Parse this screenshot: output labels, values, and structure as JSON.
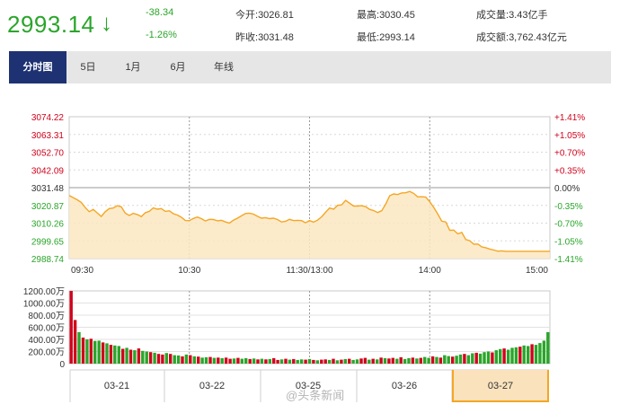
{
  "header": {
    "price": "2993.14",
    "arrow": "↓",
    "change": "-38.34",
    "change_pct": "-1.26%",
    "open_label": "今开:",
    "open_value": "3026.81",
    "prev_close_label": "昨收:",
    "prev_close_value": "3031.48",
    "high_label": "最高:",
    "high_value": "3030.45",
    "low_label": "最低:",
    "low_value": "2993.14",
    "volume_label": "成交量:",
    "volume_value": "3.43亿手",
    "turnover_label": "成交额:",
    "turnover_value": "3,762.43亿元"
  },
  "tabs": [
    "分时图",
    "5日",
    "1月",
    "6月",
    "年线"
  ],
  "active_tab": "分时图",
  "date_tabs": [
    "03-21",
    "03-22",
    "03-25",
    "03-26",
    "03-27"
  ],
  "active_date": "03-27",
  "watermark": "@头条新闻",
  "colors": {
    "up": "#d0021b",
    "down": "#2aa52a",
    "line": "#f5a623",
    "area": "#fbe7c2",
    "tab_active": "#1e3273",
    "grid": "#cccccc"
  },
  "chart_data": [
    {
      "type": "area",
      "x_labels": [
        "09:30",
        "10:30",
        "11:30/13:00",
        "14:00",
        "15:00"
      ],
      "y_tick_labels_left": [
        "3074.22",
        "3063.31",
        "3052.70",
        "3042.09",
        "3031.48",
        "3020.87",
        "3010.26",
        "2999.65",
        "2988.74"
      ],
      "y_tick_labels_right": [
        "+1.41%",
        "+1.05%",
        "+0.70%",
        "+0.35%",
        "0.00%",
        "-0.35%",
        "-0.70%",
        "-1.05%",
        "-1.41%"
      ],
      "ylim": [
        2988.74,
        3074.22
      ],
      "baseline": 3031.48,
      "series": [
        {
          "x": [
            0,
            2,
            4,
            6,
            8,
            10,
            12,
            14,
            16,
            18,
            20,
            22,
            24,
            26,
            28,
            30,
            32,
            34,
            36,
            38,
            40,
            42,
            44,
            46,
            48,
            50,
            52,
            54,
            56,
            58,
            60,
            62,
            64,
            66,
            68,
            70,
            72,
            74,
            76,
            78,
            80,
            82,
            84,
            86,
            88,
            90,
            92,
            94,
            96,
            98,
            100,
            102,
            104,
            106,
            108,
            110,
            112,
            114,
            116,
            118,
            120,
            122,
            124,
            126,
            128,
            130,
            132,
            134,
            136,
            138,
            140,
            142,
            144,
            146,
            148,
            150,
            152,
            154,
            156,
            158,
            160,
            162,
            164,
            166,
            168,
            170,
            172,
            174,
            176,
            178,
            180,
            182,
            184,
            186,
            188,
            190,
            192,
            194,
            196,
            198,
            200,
            202,
            204,
            206,
            208,
            210,
            212,
            214,
            216,
            218,
            220,
            222,
            224,
            226,
            228,
            230,
            232,
            234,
            236,
            238,
            240
          ],
          "values": [
            3026.8,
            3025.5,
            3024.2,
            3022.6,
            3019.5,
            3017.0,
            3018.4,
            3016.3,
            3014.1,
            3017.0,
            3018.9,
            3019.2,
            3020.6,
            3019.9,
            3016.1,
            3014.7,
            3016.0,
            3015.3,
            3014.0,
            3016.4,
            3017.2,
            3019.3,
            3018.5,
            3018.9,
            3017.2,
            3017.5,
            3015.8,
            3015.0,
            3013.6,
            3011.7,
            3011.6,
            3012.9,
            3013.8,
            3012.8,
            3011.4,
            3012.4,
            3012.3,
            3011.5,
            3011.8,
            3010.8,
            3010.1,
            3011.9,
            3013.1,
            3014.5,
            3015.9,
            3016.1,
            3015.5,
            3014.2,
            3013.1,
            3013.4,
            3012.8,
            3013.1,
            3012.3,
            3010.8,
            3011.2,
            3012.4,
            3011.6,
            3011.8,
            3011.6,
            3010.3,
            3011.6,
            3010.7,
            3011.9,
            3013.9,
            3016.6,
            3019.2,
            3018.5,
            3020.8,
            3021.1,
            3023.8,
            3022.1,
            3020.4,
            3020.4,
            3020.6,
            3020.0,
            3018.4,
            3017.7,
            3016.5,
            3017.6,
            3021.5,
            3026.6,
            3027.7,
            3027.3,
            3028.3,
            3028.4,
            3029.2,
            3028.0,
            3025.9,
            3026.0,
            3025.8,
            3023.0,
            3019.6,
            3015.6,
            3011.3,
            3010.8,
            3005.8,
            3005.9,
            3003.6,
            3004.5,
            3000.2,
            2999.5,
            2997.4,
            2997.5,
            2995.8,
            2995.3,
            2994.5,
            2993.9,
            2993.2,
            2993.4,
            2993.1,
            2993.1,
            2993.1,
            2993.1,
            2993.1,
            2993.1,
            2993.1,
            2993.1,
            2993.1,
            2993.1,
            2993.1,
            2993.1
          ]
        }
      ]
    },
    {
      "type": "bar",
      "y_tick_labels": [
        "1200.00万",
        "1000.00万",
        "800.00万",
        "600.00万",
        "400.00万",
        "200.00万",
        "0"
      ],
      "ylim": [
        0,
        1200
      ],
      "unit": "万",
      "values": [
        1200,
        720,
        520,
        430,
        400,
        410,
        375,
        380,
        350,
        335,
        310,
        300,
        290,
        245,
        260,
        230,
        220,
        250,
        210,
        200,
        190,
        180,
        160,
        150,
        175,
        160,
        140,
        135,
        120,
        150,
        140,
        120,
        115,
        100,
        105,
        110,
        95,
        100,
        90,
        100,
        80,
        85,
        95,
        80,
        90,
        75,
        85,
        70,
        80,
        70,
        75,
        90,
        60,
        70,
        80,
        65,
        75,
        60,
        70,
        65,
        75,
        60,
        55,
        65,
        70,
        60,
        80,
        55,
        65,
        75,
        80,
        60,
        70,
        85,
        95,
        65,
        80,
        70,
        100,
        90,
        85,
        95,
        80,
        105,
        75,
        90,
        100,
        85,
        95,
        110,
        95,
        120,
        110,
        100,
        140,
        125,
        115,
        130,
        150,
        160,
        140,
        170,
        180,
        165,
        190,
        200,
        185,
        220,
        240,
        250,
        230,
        260,
        270,
        280,
        300,
        290,
        320,
        310,
        340,
        380,
        520
      ],
      "colors": [
        "up",
        "up",
        "down",
        "up",
        "down",
        "up",
        "down",
        "down",
        "up",
        "down",
        "up",
        "down",
        "down",
        "up",
        "down",
        "up",
        "down",
        "up",
        "down",
        "down",
        "up",
        "down",
        "up",
        "up",
        "down",
        "up",
        "down",
        "down",
        "up",
        "down",
        "up",
        "down",
        "up",
        "down",
        "down",
        "up",
        "down",
        "up",
        "down",
        "up",
        "up",
        "down",
        "up",
        "down",
        "down",
        "up",
        "down",
        "up",
        "down",
        "up",
        "down",
        "up",
        "up",
        "down",
        "up",
        "down",
        "up",
        "down",
        "down",
        "up",
        "down",
        "up",
        "down",
        "up",
        "up",
        "down",
        "up",
        "down",
        "up",
        "down",
        "up",
        "down",
        "down",
        "up",
        "up",
        "down",
        "up",
        "down",
        "up",
        "down",
        "up",
        "up",
        "down",
        "up",
        "down",
        "down",
        "up",
        "down",
        "up",
        "down",
        "down",
        "up",
        "down",
        "up",
        "down",
        "down",
        "up",
        "down",
        "down",
        "up",
        "down",
        "down",
        "up",
        "down",
        "down",
        "down",
        "up",
        "down",
        "down",
        "up",
        "down",
        "down",
        "down",
        "up",
        "down",
        "down",
        "up",
        "down",
        "down",
        "down",
        "down"
      ]
    }
  ]
}
